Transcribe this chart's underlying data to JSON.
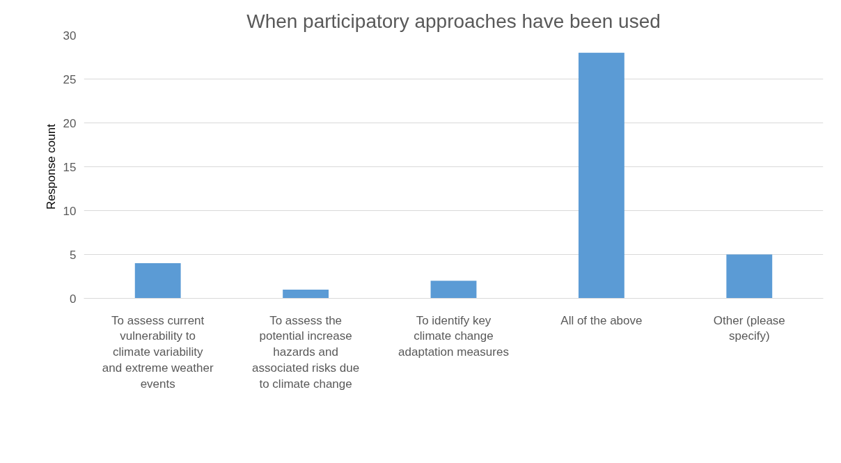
{
  "chart_data": {
    "type": "bar",
    "title": "When participatory approaches have been used",
    "ylabel": "Response count",
    "categories": [
      "To assess current vulnerability to climate variability and extreme weather events",
      "To assess the potential increase hazards and associated risks due to climate change",
      "To identify key climate change adaptation measures",
      "All of the above",
      "Other (please specify)"
    ],
    "values": [
      4,
      1,
      2,
      28,
      5
    ],
    "color": "#5b9bd5",
    "ylim": [
      0,
      30
    ],
    "yticks": [
      0,
      5,
      10,
      15,
      20,
      25,
      30
    ],
    "grid": "y"
  }
}
